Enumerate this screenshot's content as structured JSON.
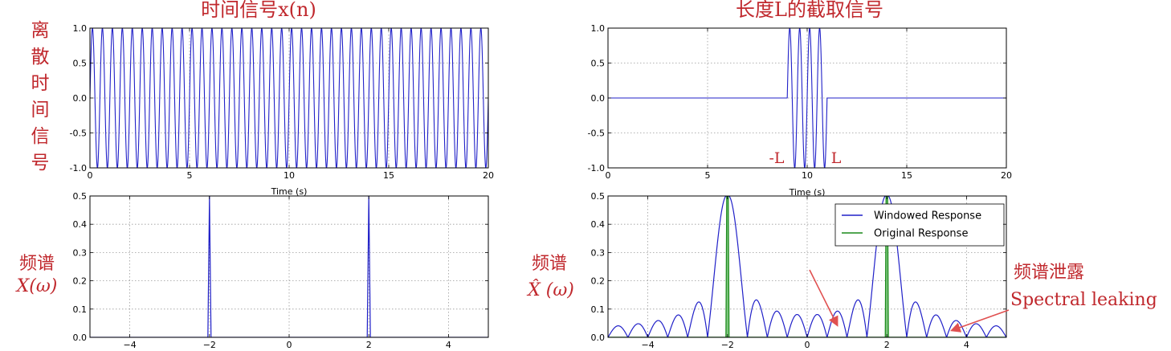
{
  "labels": {
    "title_left": "时间信号x(n)",
    "title_right": "长度L的截取信号",
    "left_side_chars": [
      "离",
      "散",
      "时",
      "间",
      "信",
      "号"
    ],
    "spectrum_label": "频谱",
    "spectrum_left_symbol": "X(ω)",
    "spectrum_right_symbol": "X̂ (ω)",
    "marker_neg_L": "-L",
    "marker_L": "L",
    "leak_cn": "频谱泄露",
    "leak_en": "Spectral leaking"
  },
  "colors": {
    "annotation": "#c0282d",
    "windowed": "#2020c8",
    "original": "#1a8a1a",
    "arrow": "#e05050"
  },
  "chart_data": [
    {
      "id": "time-signal",
      "type": "line",
      "title": "时间信号x(n)",
      "xlabel": "",
      "ylabel": "",
      "xlim": [
        0,
        20
      ],
      "ylim": [
        -1.0,
        1.0
      ],
      "x_ticks": [
        0,
        5,
        10,
        15,
        20
      ],
      "y_ticks": [
        -1.0,
        -0.5,
        0.0,
        0.5,
        1.0
      ],
      "grid": true,
      "signal": {
        "kind": "sine",
        "frequency": 2.0,
        "start": 0,
        "end": 20,
        "amplitude": 1.0
      }
    },
    {
      "id": "windowed-signal",
      "type": "line",
      "title": "长度L的截取信号",
      "xlabel": "Time (s)",
      "ylabel": "",
      "xlim": [
        0,
        20
      ],
      "ylim": [
        -1.0,
        1.0
      ],
      "x_ticks": [
        0,
        5,
        10,
        15,
        20
      ],
      "y_ticks": [
        -1.0,
        -0.5,
        0.0,
        0.5,
        1.0
      ],
      "grid": true,
      "signal": {
        "kind": "sine",
        "frequency": 2.0,
        "start": 9.0,
        "end": 11.0,
        "amplitude": 1.0
      }
    },
    {
      "id": "original-spectrum",
      "type": "line",
      "title": "",
      "xlabel": "",
      "ylabel": "",
      "xlim": [
        -5,
        5
      ],
      "ylim": [
        0.0,
        0.5
      ],
      "x_ticks": [
        -4,
        -2,
        0,
        2,
        4
      ],
      "y_ticks": [
        0.0,
        0.1,
        0.2,
        0.3,
        0.4,
        0.5
      ],
      "grid": true,
      "peaks": [
        {
          "x": -2,
          "y": 0.5
        },
        {
          "x": 2,
          "y": 0.5
        }
      ],
      "peak_halfwidth": 0.04
    },
    {
      "id": "windowed-spectrum",
      "type": "line",
      "title": "",
      "xlabel": "",
      "ylabel": "",
      "xlim": [
        -5,
        5
      ],
      "ylim": [
        0.0,
        0.5
      ],
      "x_ticks": [
        -4,
        -2,
        0,
        2,
        4
      ],
      "y_ticks": [
        0.0,
        0.1,
        0.2,
        0.3,
        0.4,
        0.5
      ],
      "grid": true,
      "legend": "top-right",
      "series": [
        {
          "name": "Windowed Response",
          "kind": "sinc",
          "centers": [
            -2,
            2
          ],
          "amplitude": 0.5,
          "null_spacing": 0.5
        },
        {
          "name": "Original Response",
          "kind": "spike",
          "centers": [
            -2,
            2
          ],
          "amplitude": 0.5,
          "halfwidth": 0.04
        }
      ]
    }
  ],
  "time_axis_label": "Time (s)"
}
